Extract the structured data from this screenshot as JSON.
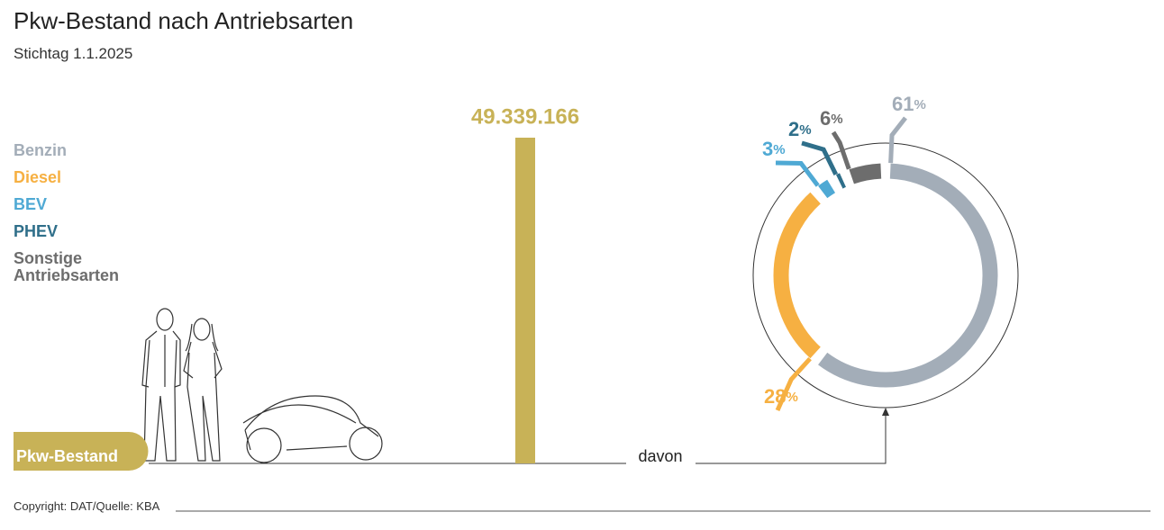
{
  "title": "Pkw-Bestand nach Antriebsarten",
  "subtitle": "Stichtag 1.1.2025",
  "annotation": "davon",
  "source": "Copyright: DAT/Quelle: KBA",
  "chart_data": [
    {
      "type": "bar",
      "categories": [
        "Pkw-Bestand"
      ],
      "values": [
        49339166
      ],
      "value_labels": [
        "49.339.166"
      ],
      "color": "#c8b257"
    },
    {
      "type": "donut",
      "categories": [
        "Benzin",
        "Diesel",
        "BEV",
        "PHEV",
        "Sonstige Antriebsarten"
      ],
      "values": [
        61,
        28,
        3,
        2,
        6
      ],
      "value_labels": [
        "61%",
        "28%",
        "3%",
        "2%",
        "6%"
      ],
      "colors": [
        "#a3adb8",
        "#f6b042",
        "#4fa9d4",
        "#2f6f8a",
        "#6d6d6d"
      ]
    }
  ]
}
